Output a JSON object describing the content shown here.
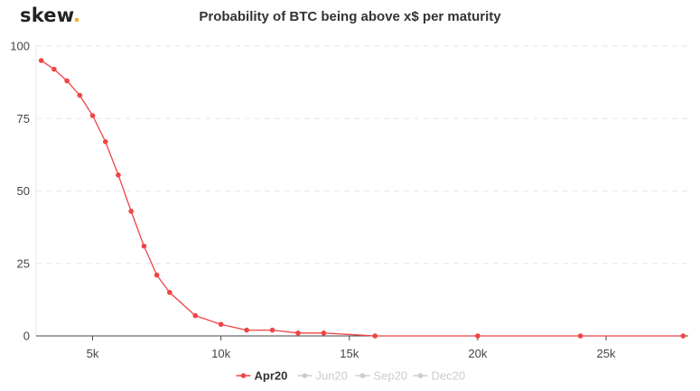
{
  "logo": {
    "text": "skew",
    "dot": "."
  },
  "chart_data": {
    "type": "line",
    "title": "Probability of BTC being above x$ per maturity",
    "xlabel": "",
    "ylabel": "",
    "xlim": [
      2800,
      28200
    ],
    "ylim": [
      0,
      100
    ],
    "x_ticks": [
      {
        "value": 5000,
        "label": "5k"
      },
      {
        "value": 10000,
        "label": "10k"
      },
      {
        "value": 15000,
        "label": "15k"
      },
      {
        "value": 20000,
        "label": "20k"
      },
      {
        "value": 25000,
        "label": "25k"
      }
    ],
    "y_ticks": [
      {
        "value": 0,
        "label": "0"
      },
      {
        "value": 25,
        "label": "25"
      },
      {
        "value": 50,
        "label": "50"
      },
      {
        "value": 75,
        "label": "75"
      },
      {
        "value": 100,
        "label": "100"
      }
    ],
    "grid": "horizontal dashed",
    "legend_position": "bottom-center",
    "series": [
      {
        "name": "Apr20",
        "color": "#ef4444",
        "active": true,
        "points": [
          [
            3000,
            95
          ],
          [
            3500,
            92
          ],
          [
            4000,
            88
          ],
          [
            4500,
            83
          ],
          [
            5000,
            76
          ],
          [
            5500,
            67
          ],
          [
            6000,
            55.5
          ],
          [
            6500,
            43
          ],
          [
            7000,
            31
          ],
          [
            7500,
            21
          ],
          [
            8000,
            15
          ],
          [
            9000,
            7
          ],
          [
            10000,
            4
          ],
          [
            11000,
            2
          ],
          [
            12000,
            2
          ],
          [
            13000,
            1
          ],
          [
            14000,
            1
          ],
          [
            16000,
            0
          ],
          [
            20000,
            0
          ],
          [
            24000,
            0
          ],
          [
            28000,
            0
          ]
        ]
      },
      {
        "name": "Jun20",
        "color": "#cccccc",
        "active": false,
        "points": []
      },
      {
        "name": "Sep20",
        "color": "#cccccc",
        "active": false,
        "points": []
      },
      {
        "name": "Dec20",
        "color": "#cccccc",
        "active": false,
        "points": []
      }
    ]
  }
}
